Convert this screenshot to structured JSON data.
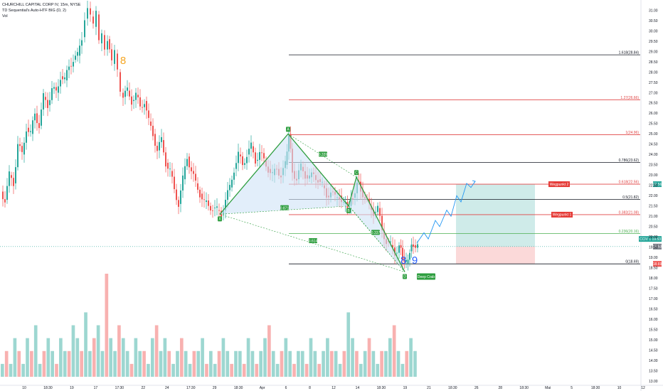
{
  "header": {
    "symbol_line": "CHURCHILL CAPITAL CORP IV, 15m, NYSE",
    "indicator_line": "TD Sequential's Auto-HTF BIG (D, 2)",
    "volume_label": "Vol"
  },
  "chart_data": {
    "type": "candlestick",
    "ylim": [
      13.0,
      31.4
    ],
    "y_ticks": [
      "31.00",
      "30.50",
      "30.00",
      "29.50",
      "29.00",
      "28.50",
      "28.00",
      "27.50",
      "27.00",
      "26.50",
      "26.00",
      "25.50",
      "25.00",
      "24.50",
      "24.00",
      "23.50",
      "23.00",
      "22.50",
      "22.00",
      "21.50",
      "21.00",
      "20.50",
      "20.00",
      "19.50",
      "19.00",
      "18.50",
      "18.00",
      "17.50",
      "17.00",
      "16.50",
      "16.00",
      "15.50",
      "15.00",
      "14.50",
      "14.00",
      "13.50",
      "13.00"
    ],
    "x_ticks": [
      "10",
      "18:30",
      "19",
      "17",
      "17:30",
      "22",
      "24",
      "17:30",
      "29",
      "18:30",
      "Apr",
      "6",
      "8",
      "12",
      "14",
      "18:30",
      "19",
      "21",
      "18:30",
      "26",
      "28",
      "18:30",
      "Mai",
      "5",
      "18:30",
      "10",
      "12"
    ],
    "price_path": [
      [
        0,
        22.2
      ],
      [
        6,
        21.8
      ],
      [
        12,
        23.0
      ],
      [
        18,
        22.6
      ],
      [
        24,
        24.5
      ],
      [
        30,
        24.0
      ],
      [
        36,
        25.3
      ],
      [
        42,
        25.0
      ],
      [
        48,
        26.0
      ],
      [
        54,
        25.4
      ],
      [
        60,
        26.8
      ],
      [
        66,
        26.4
      ],
      [
        72,
        27.2
      ],
      [
        78,
        27.0
      ],
      [
        84,
        27.8
      ],
      [
        90,
        27.6
      ],
      [
        96,
        28.3
      ],
      [
        102,
        28.6
      ],
      [
        108,
        28.8
      ],
      [
        114,
        29.7
      ],
      [
        118,
        30.6
      ],
      [
        122,
        31.1
      ],
      [
        126,
        30.7
      ],
      [
        130,
        30.2
      ],
      [
        134,
        30.8
      ],
      [
        138,
        29.4
      ],
      [
        142,
        29.8
      ],
      [
        146,
        29.1
      ],
      [
        150,
        29.6
      ],
      [
        156,
        28.4
      ],
      [
        160,
        28.9
      ],
      [
        164,
        28.0
      ],
      [
        168,
        27.0
      ],
      [
        172,
        26.8
      ],
      [
        178,
        27.1
      ],
      [
        184,
        26.6
      ],
      [
        190,
        26.9
      ],
      [
        196,
        26.3
      ],
      [
        202,
        26.6
      ],
      [
        208,
        25.6
      ],
      [
        214,
        25.0
      ],
      [
        220,
        24.2
      ],
      [
        226,
        24.7
      ],
      [
        232,
        23.6
      ],
      [
        238,
        23.2
      ],
      [
        244,
        22.3
      ],
      [
        250,
        21.6
      ],
      [
        256,
        22.8
      ],
      [
        262,
        23.9
      ],
      [
        268,
        23.2
      ],
      [
        274,
        22.6
      ],
      [
        280,
        22.1
      ],
      [
        286,
        21.7
      ],
      [
        292,
        21.5
      ],
      [
        298,
        21.4
      ],
      [
        304,
        21.3
      ],
      [
        310,
        21.1
      ],
      [
        316,
        21.8
      ],
      [
        322,
        22.4
      ],
      [
        328,
        23.3
      ],
      [
        334,
        24.0
      ],
      [
        340,
        23.5
      ],
      [
        346,
        24.0
      ],
      [
        352,
        24.4
      ],
      [
        358,
        23.7
      ],
      [
        364,
        24.1
      ],
      [
        370,
        23.7
      ],
      [
        376,
        23.3
      ],
      [
        382,
        23.0
      ],
      [
        388,
        23.3
      ],
      [
        394,
        23.0
      ],
      [
        400,
        23.5
      ],
      [
        405,
        25.0
      ],
      [
        410,
        23.2
      ],
      [
        416,
        22.8
      ],
      [
        422,
        23.4
      ],
      [
        428,
        23.0
      ],
      [
        434,
        22.9
      ],
      [
        440,
        23.0
      ],
      [
        446,
        22.8
      ],
      [
        452,
        22.5
      ],
      [
        458,
        22.0
      ],
      [
        464,
        22.2
      ],
      [
        470,
        21.9
      ],
      [
        476,
        22.0
      ],
      [
        482,
        21.6
      ],
      [
        490,
        21.5
      ],
      [
        495,
        21.9
      ],
      [
        501,
        22.7
      ],
      [
        506,
        22.3
      ],
      [
        512,
        21.9
      ],
      [
        518,
        21.5
      ],
      [
        524,
        21.2
      ],
      [
        530,
        21.4
      ],
      [
        536,
        20.3
      ],
      [
        542,
        19.8
      ],
      [
        548,
        19.6
      ],
      [
        554,
        19.2
      ],
      [
        560,
        19.6
      ],
      [
        565,
        19.0
      ],
      [
        570,
        18.7
      ],
      [
        575,
        19.3
      ],
      [
        580,
        19.6
      ],
      [
        586,
        19.7
      ]
    ],
    "volume": [
      1,
      2,
      1,
      3,
      2,
      1,
      3,
      2,
      4,
      1,
      2,
      3,
      2,
      1,
      3,
      2,
      2,
      4,
      3,
      2,
      5,
      2,
      3,
      4,
      2,
      8,
      3,
      2,
      4,
      3,
      2,
      1,
      3,
      2,
      2,
      1,
      3,
      4,
      2,
      3,
      2,
      1,
      2,
      3,
      2,
      1,
      2,
      2,
      3,
      1,
      2,
      1,
      2,
      3,
      2,
      1,
      2,
      2,
      1,
      3,
      2,
      1,
      2,
      3,
      4,
      2,
      1,
      2,
      3,
      2,
      1,
      2,
      2,
      1,
      3,
      2,
      1,
      2,
      3,
      2,
      2,
      1,
      2,
      5,
      3,
      2,
      1,
      2,
      3,
      2,
      1,
      2,
      2,
      3,
      4,
      2,
      1,
      2,
      3,
      2
    ],
    "harmonic_pattern": {
      "name": "Deep Crab",
      "points": [
        {
          "label": "X",
          "time": 309,
          "price": 21.1
        },
        {
          "label": "A",
          "time": 405,
          "price": 25.0
        },
        {
          "label": "B",
          "time": 490,
          "price": 21.5
        },
        {
          "label": "C",
          "time": 501,
          "price": 22.9
        },
        {
          "label": "D",
          "time": 569,
          "price": 18.3
        }
      ],
      "ratios": [
        {
          "label": "0.871",
          "time": 400,
          "price": 21.4
        },
        {
          "label": "0.339",
          "time": 454,
          "price": 24.0
        },
        {
          "label": "0.337",
          "time": 528,
          "price": 20.2
        },
        {
          "label": "3.614",
          "time": 440,
          "price": 19.8
        }
      ]
    },
    "fib_levels": [
      {
        "label": "1.618(28.84)",
        "price": 28.84,
        "color": "#131722"
      },
      {
        "label": "1.27(26.66)",
        "price": 26.66,
        "color": "#e04444"
      },
      {
        "label": "1(24.96)",
        "price": 24.96,
        "color": "#e04444"
      },
      {
        "label": "0.786(23.62)",
        "price": 23.62,
        "color": "#131722"
      },
      {
        "label": "0.618(22.56)",
        "price": 22.56,
        "color": "#e04444"
      },
      {
        "label": "0.5(21.82)",
        "price": 21.82,
        "color": "#131722"
      },
      {
        "label": "0.382(21.08)",
        "price": 21.08,
        "color": "#e04444"
      },
      {
        "label": "0.236(20.16)",
        "price": 20.16,
        "color": "#4caf50"
      },
      {
        "label": "0(18.69)",
        "price": 18.69,
        "color": "#131722"
      }
    ],
    "targets": [
      {
        "label": "Wegpunkt 2",
        "price": 22.56
      },
      {
        "label": "Wegpunkt 1",
        "price": 21.08
      }
    ],
    "position": {
      "entry": 19.53,
      "target": 22.56,
      "stop": 18.69,
      "start_time": 641,
      "end_time": 752
    },
    "projection": [
      [
        586,
        19.7
      ],
      [
        596,
        20.2
      ],
      [
        602,
        19.9
      ],
      [
        612,
        20.8
      ],
      [
        618,
        20.5
      ],
      [
        628,
        21.3
      ],
      [
        634,
        21.0
      ],
      [
        642,
        22.0
      ],
      [
        648,
        21.7
      ],
      [
        656,
        22.6
      ],
      [
        662,
        22.4
      ],
      [
        668,
        22.7
      ]
    ],
    "td_counts": [
      {
        "label": "8",
        "time": 173,
        "price": 28.4,
        "color": "#f5a623"
      },
      {
        "label": "8",
        "time": 567,
        "price": 18.7,
        "color": "#2962ff"
      },
      {
        "label": "9",
        "time": 583,
        "price": 18.7,
        "color": "#2962ff"
      }
    ],
    "badges": [
      {
        "label": "CCIV",
        "price": 19.9,
        "text": "CCIV 1 19.53",
        "color": "#26a69a"
      },
      {
        "label": "price",
        "price": 19.53,
        "text": "19.53",
        "color": "#787b86"
      },
      {
        "label": "target",
        "price": 22.56,
        "text": "22.56",
        "color": "#26a69a"
      },
      {
        "label": "stop",
        "price": 18.69,
        "text": "18.69",
        "color": "#ef5350"
      }
    ],
    "colors": {
      "up": "#26a69a",
      "down": "#ef5350",
      "pattern": "#2e9e3f",
      "pattern_fill": "#cfe3f7"
    }
  }
}
